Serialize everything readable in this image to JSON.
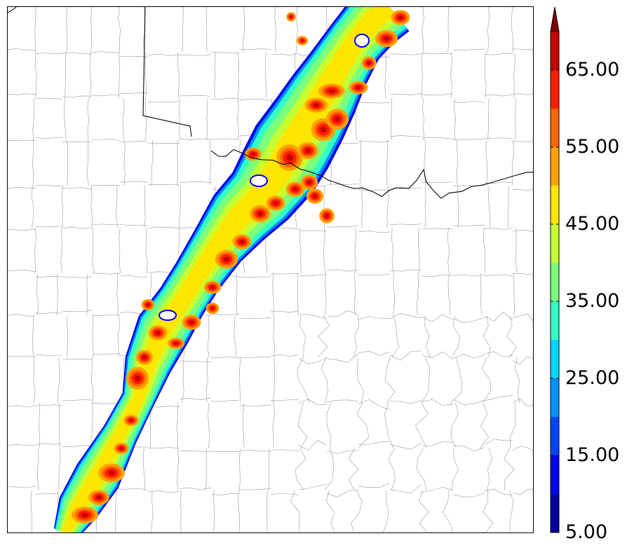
{
  "colorbar": {
    "min_value": 5.0,
    "max_value": 70.0,
    "extend": "max",
    "labels": [
      "5.00",
      "15.00",
      "25.00",
      "35.00",
      "45.00",
      "55.00",
      "65.00"
    ],
    "label_values": [
      5,
      15,
      25,
      35,
      45,
      55,
      65
    ],
    "levels": [
      5,
      10,
      15,
      20,
      25,
      30,
      35,
      40,
      45,
      50,
      55,
      60,
      65,
      70
    ],
    "colors": [
      "#00009c",
      "#0000f0",
      "#0046ff",
      "#0092ff",
      "#00d8ff",
      "#32ffc6",
      "#7cff7c",
      "#c6ff32",
      "#ffe600",
      "#ffa200",
      "#ff6800",
      "#ff1e00",
      "#c80000"
    ],
    "extend_color": "#800000"
  },
  "map": {
    "county_line_color": "#999999",
    "state_line_color": "#000000",
    "background": "#ffffff"
  }
}
